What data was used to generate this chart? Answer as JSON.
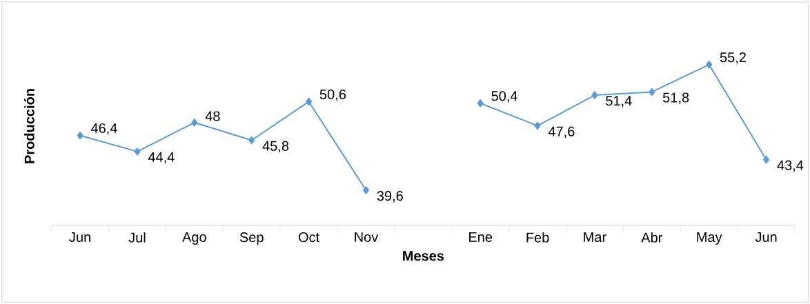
{
  "chart_data": {
    "type": "line",
    "xlabel": "Meses",
    "ylabel": "Producción",
    "categories": [
      "Jun",
      "Jul",
      "Ago",
      "Sep",
      "Oct",
      "Nov",
      null,
      "Ene",
      "Feb",
      "Mar",
      "Abr",
      "May",
      "Jun"
    ],
    "values": [
      46.4,
      44.4,
      48,
      45.8,
      50.6,
      39.6,
      null,
      50.4,
      47.6,
      51.4,
      51.8,
      55.2,
      43.4
    ],
    "value_labels": [
      "46,4",
      "44,4",
      "48",
      "45,8",
      "50,6",
      "39,6",
      null,
      "50,4",
      "47,6",
      "51,4",
      "51,8",
      "55,2",
      "43,4"
    ],
    "color": "#5b9bd5",
    "marker": "diamond",
    "line_style": "solid"
  }
}
